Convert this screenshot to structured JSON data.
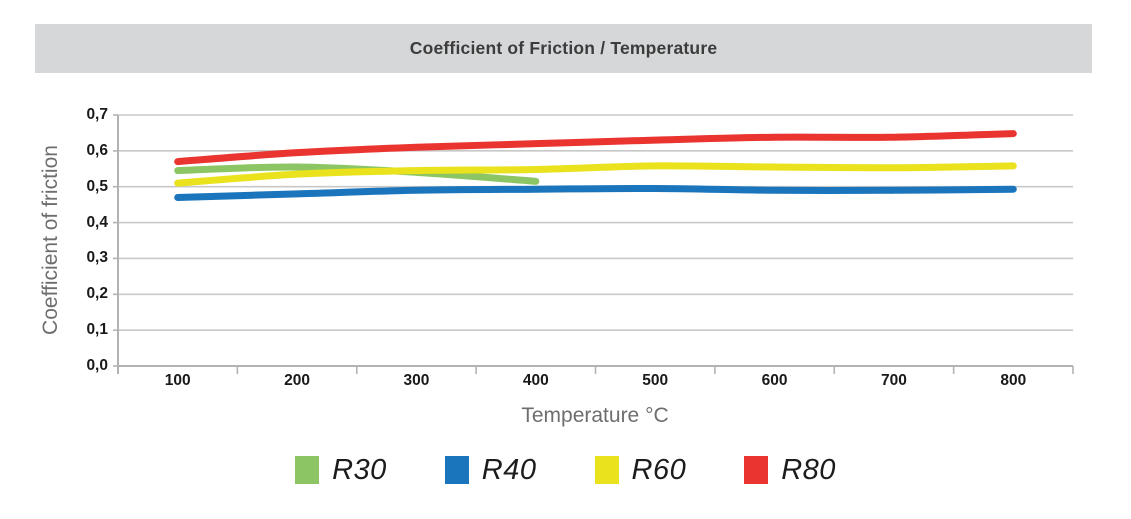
{
  "chart_data": {
    "type": "line",
    "title": "Coefficient of Friction / Temperature",
    "xlabel": "Temperature °C",
    "ylabel": "Coefficient of friction",
    "x": [
      100,
      200,
      300,
      400,
      500,
      600,
      700,
      800
    ],
    "ylim": [
      0.0,
      0.7
    ],
    "ytick_step": 0.1,
    "decimal_separator": ",",
    "grid": true,
    "legend_position": "bottom",
    "line_style": "smooth",
    "colors": {
      "grid": "#c8c8c8",
      "axis": "#b3b3b3",
      "title_bar_bg": "#d6d7d8",
      "title_text": "#3c3c3c",
      "tick_text": "#191919",
      "axis_title_text": "#6e6e6e"
    },
    "series": [
      {
        "name": "R30",
        "color": "#8cc664",
        "values": [
          0.545,
          0.555,
          0.54,
          0.515
        ]
      },
      {
        "name": "R40",
        "color": "#1a75bc",
        "values": [
          0.47,
          0.48,
          0.49,
          0.493,
          0.495,
          0.49,
          0.49,
          0.493
        ]
      },
      {
        "name": "R60",
        "color": "#e9e21c",
        "values": [
          0.51,
          0.535,
          0.545,
          0.548,
          0.558,
          0.555,
          0.553,
          0.558
        ]
      },
      {
        "name": "R80",
        "color": "#e9342f",
        "values": [
          0.57,
          0.595,
          0.61,
          0.62,
          0.63,
          0.638,
          0.638,
          0.648
        ]
      }
    ]
  }
}
